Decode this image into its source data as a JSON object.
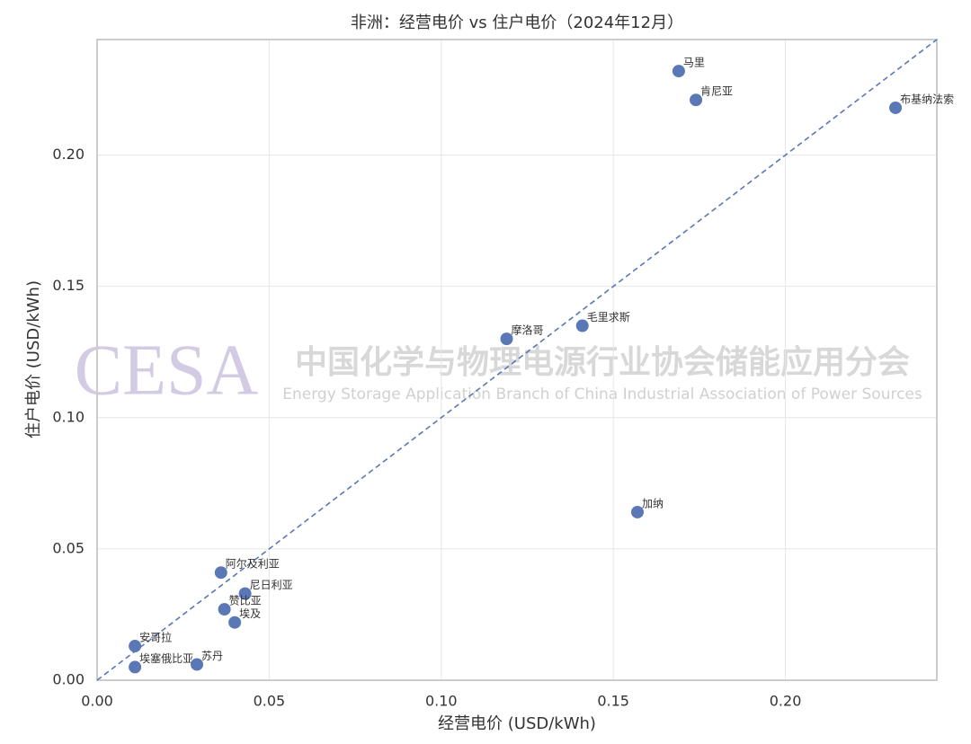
{
  "chart_data": {
    "type": "scatter",
    "title": "非洲：经营电价 vs 住户电价（2024年12月）",
    "x_label": "经营电价 (USD/kWh)",
    "y_label": "住户电价 (USD/kWh)",
    "point_labels": [
      "马里",
      "肯尼亚",
      "布基纳法索",
      "摩洛哥",
      "毛里求斯",
      "加纳",
      "阿尔及利亚",
      "尼日利亚",
      "赞比亚",
      "埃及",
      "安哥拉",
      "埃塞俄比亚",
      "苏丹"
    ],
    "x": [
      0.169,
      0.174,
      0.232,
      0.119,
      0.141,
      0.157,
      0.036,
      0.043,
      0.037,
      0.04,
      0.011,
      0.011,
      0.029
    ],
    "values": [
      0.232,
      0.221,
      0.218,
      0.13,
      0.135,
      0.064,
      0.041,
      0.033,
      0.027,
      0.022,
      0.013,
      0.005,
      0.006
    ],
    "color": "#5a78b5",
    "xlim": [
      0,
      0.244
    ],
    "ylim": [
      0,
      0.244
    ],
    "xticks": [
      {
        "value": 0,
        "label": "0.00"
      },
      0.05,
      {
        "value": 0.1,
        "label": "0.10"
      },
      0.15,
      {
        "value": 0.2,
        "label": "0.20"
      }
    ],
    "yticks": [
      {
        "value": 0,
        "label": "0.00"
      },
      0.05,
      {
        "value": 0.1,
        "label": "0.10"
      },
      0.15,
      {
        "value": 0.2,
        "label": "0.20"
      }
    ],
    "grid": true,
    "diagonal": true,
    "watermark": {
      "logo": "CESA",
      "name": "中国化学与物理电源行业协会储能应用分会",
      "english": "Energy Storage Application Branch of China Industrial Association of Power Sources"
    }
  }
}
